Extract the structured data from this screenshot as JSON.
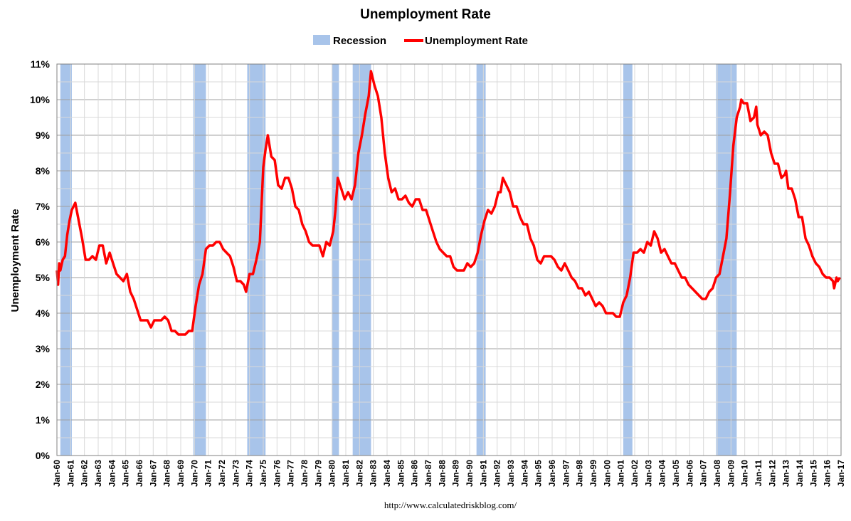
{
  "chart_data": {
    "type": "line",
    "title": "Unemployment Rate",
    "ylabel": "Unemployment Rate",
    "xlabel": "",
    "source": "http://www.calculatedriskblog.com/",
    "legend": {
      "placement": "top-center",
      "entries": [
        "Recession",
        "Unemployment Rate"
      ]
    },
    "colors": {
      "line": "#ff0000",
      "recession": "#a8c4ea",
      "grid_major": "#a0a0a0",
      "grid_minor": "#d9d9d9"
    },
    "grid": true,
    "ylim": [
      0,
      11
    ],
    "xlim": [
      "1960-01",
      "2017-01"
    ],
    "y_ticks": [
      "0%",
      "1%",
      "2%",
      "3%",
      "4%",
      "5%",
      "6%",
      "7%",
      "8%",
      "9%",
      "10%",
      "11%"
    ],
    "x_ticks": [
      "Jan-60",
      "Jan-61",
      "Jan-62",
      "Jan-63",
      "Jan-64",
      "Jan-65",
      "Jan-66",
      "Jan-67",
      "Jan-68",
      "Jan-69",
      "Jan-70",
      "Jan-71",
      "Jan-72",
      "Jan-73",
      "Jan-74",
      "Jan-75",
      "Jan-76",
      "Jan-77",
      "Jan-78",
      "Jan-79",
      "Jan-80",
      "Jan-81",
      "Jan-82",
      "Jan-83",
      "Jan-84",
      "Jan-85",
      "Jan-86",
      "Jan-87",
      "Jan-88",
      "Jan-89",
      "Jan-90",
      "Jan-91",
      "Jan-92",
      "Jan-93",
      "Jan-94",
      "Jan-95",
      "Jan-96",
      "Jan-97",
      "Jan-98",
      "Jan-99",
      "Jan-00",
      "Jan-01",
      "Jan-02",
      "Jan-03",
      "Jan-04",
      "Jan-05",
      "Jan-06",
      "Jan-07",
      "Jan-08",
      "Jan-09",
      "Jan-10",
      "Jan-11",
      "Jan-12",
      "Jan-13",
      "Jan-14",
      "Jan-15",
      "Jan-16",
      "Jan-17"
    ],
    "recessions": [
      {
        "start": "1960-04",
        "end": "1961-02"
      },
      {
        "start": "1969-12",
        "end": "1970-11"
      },
      {
        "start": "1973-11",
        "end": "1975-03"
      },
      {
        "start": "1980-01",
        "end": "1980-07"
      },
      {
        "start": "1981-07",
        "end": "1982-11"
      },
      {
        "start": "1990-07",
        "end": "1991-03"
      },
      {
        "start": "2001-03",
        "end": "2001-11"
      },
      {
        "start": "2007-12",
        "end": "2009-06"
      }
    ],
    "series": [
      {
        "name": "Unemployment Rate",
        "points": [
          [
            "1960-01",
            5.2
          ],
          [
            "1960-02",
            4.8
          ],
          [
            "1960-03",
            5.4
          ],
          [
            "1960-04",
            5.2
          ],
          [
            "1960-06",
            5.5
          ],
          [
            "1960-08",
            5.6
          ],
          [
            "1960-10",
            6.2
          ],
          [
            "1960-12",
            6.6
          ],
          [
            "1961-02",
            6.9
          ],
          [
            "1961-05",
            7.1
          ],
          [
            "1961-08",
            6.6
          ],
          [
            "1961-11",
            6.1
          ],
          [
            "1962-02",
            5.5
          ],
          [
            "1962-05",
            5.5
          ],
          [
            "1962-08",
            5.6
          ],
          [
            "1962-11",
            5.5
          ],
          [
            "1963-02",
            5.9
          ],
          [
            "1963-05",
            5.9
          ],
          [
            "1963-08",
            5.4
          ],
          [
            "1963-11",
            5.7
          ],
          [
            "1964-02",
            5.4
          ],
          [
            "1964-05",
            5.1
          ],
          [
            "1964-08",
            5.0
          ],
          [
            "1964-11",
            4.9
          ],
          [
            "1965-02",
            5.1
          ],
          [
            "1965-05",
            4.6
          ],
          [
            "1965-08",
            4.4
          ],
          [
            "1965-11",
            4.1
          ],
          [
            "1966-02",
            3.8
          ],
          [
            "1966-05",
            3.8
          ],
          [
            "1966-08",
            3.8
          ],
          [
            "1966-11",
            3.6
          ],
          [
            "1967-02",
            3.8
          ],
          [
            "1967-05",
            3.8
          ],
          [
            "1967-08",
            3.8
          ],
          [
            "1967-11",
            3.9
          ],
          [
            "1968-02",
            3.8
          ],
          [
            "1968-05",
            3.5
          ],
          [
            "1968-08",
            3.5
          ],
          [
            "1968-11",
            3.4
          ],
          [
            "1969-02",
            3.4
          ],
          [
            "1969-05",
            3.4
          ],
          [
            "1969-08",
            3.5
          ],
          [
            "1969-11",
            3.5
          ],
          [
            "1970-02",
            4.2
          ],
          [
            "1970-05",
            4.8
          ],
          [
            "1970-08",
            5.1
          ],
          [
            "1970-11",
            5.8
          ],
          [
            "1971-02",
            5.9
          ],
          [
            "1971-05",
            5.9
          ],
          [
            "1971-08",
            6.0
          ],
          [
            "1971-11",
            6.0
          ],
          [
            "1972-02",
            5.8
          ],
          [
            "1972-05",
            5.7
          ],
          [
            "1972-08",
            5.6
          ],
          [
            "1972-11",
            5.3
          ],
          [
            "1973-02",
            4.9
          ],
          [
            "1973-05",
            4.9
          ],
          [
            "1973-08",
            4.8
          ],
          [
            "1973-10",
            4.6
          ],
          [
            "1974-01",
            5.1
          ],
          [
            "1974-04",
            5.1
          ],
          [
            "1974-07",
            5.5
          ],
          [
            "1974-10",
            6.0
          ],
          [
            "1975-01",
            8.1
          ],
          [
            "1975-03",
            8.6
          ],
          [
            "1975-05",
            9.0
          ],
          [
            "1975-08",
            8.4
          ],
          [
            "1975-11",
            8.3
          ],
          [
            "1976-02",
            7.6
          ],
          [
            "1976-05",
            7.5
          ],
          [
            "1976-08",
            7.8
          ],
          [
            "1976-11",
            7.8
          ],
          [
            "1977-02",
            7.5
          ],
          [
            "1977-05",
            7.0
          ],
          [
            "1977-08",
            6.9
          ],
          [
            "1977-11",
            6.5
          ],
          [
            "1978-02",
            6.3
          ],
          [
            "1978-05",
            6.0
          ],
          [
            "1978-08",
            5.9
          ],
          [
            "1978-11",
            5.9
          ],
          [
            "1979-02",
            5.9
          ],
          [
            "1979-05",
            5.6
          ],
          [
            "1979-08",
            6.0
          ],
          [
            "1979-11",
            5.9
          ],
          [
            "1980-02",
            6.3
          ],
          [
            "1980-04",
            6.9
          ],
          [
            "1980-06",
            7.8
          ],
          [
            "1980-09",
            7.5
          ],
          [
            "1980-12",
            7.2
          ],
          [
            "1981-03",
            7.4
          ],
          [
            "1981-06",
            7.2
          ],
          [
            "1981-09",
            7.6
          ],
          [
            "1981-12",
            8.5
          ],
          [
            "1982-03",
            9.0
          ],
          [
            "1982-06",
            9.6
          ],
          [
            "1982-09",
            10.1
          ],
          [
            "1982-11",
            10.8
          ],
          [
            "1983-02",
            10.4
          ],
          [
            "1983-05",
            10.1
          ],
          [
            "1983-08",
            9.5
          ],
          [
            "1983-11",
            8.5
          ],
          [
            "1984-02",
            7.8
          ],
          [
            "1984-05",
            7.4
          ],
          [
            "1984-08",
            7.5
          ],
          [
            "1984-11",
            7.2
          ],
          [
            "1985-02",
            7.2
          ],
          [
            "1985-05",
            7.3
          ],
          [
            "1985-08",
            7.1
          ],
          [
            "1985-11",
            7.0
          ],
          [
            "1986-02",
            7.2
          ],
          [
            "1986-05",
            7.2
          ],
          [
            "1986-08",
            6.9
          ],
          [
            "1986-11",
            6.9
          ],
          [
            "1987-02",
            6.6
          ],
          [
            "1987-05",
            6.3
          ],
          [
            "1987-08",
            6.0
          ],
          [
            "1987-11",
            5.8
          ],
          [
            "1988-02",
            5.7
          ],
          [
            "1988-05",
            5.6
          ],
          [
            "1988-08",
            5.6
          ],
          [
            "1988-11",
            5.3
          ],
          [
            "1989-02",
            5.2
          ],
          [
            "1989-05",
            5.2
          ],
          [
            "1989-08",
            5.2
          ],
          [
            "1989-11",
            5.4
          ],
          [
            "1990-02",
            5.3
          ],
          [
            "1990-05",
            5.4
          ],
          [
            "1990-08",
            5.7
          ],
          [
            "1990-11",
            6.2
          ],
          [
            "1991-02",
            6.6
          ],
          [
            "1991-05",
            6.9
          ],
          [
            "1991-08",
            6.8
          ],
          [
            "1991-11",
            7.0
          ],
          [
            "1992-02",
            7.4
          ],
          [
            "1992-04",
            7.4
          ],
          [
            "1992-06",
            7.8
          ],
          [
            "1992-09",
            7.6
          ],
          [
            "1992-12",
            7.4
          ],
          [
            "1993-03",
            7.0
          ],
          [
            "1993-06",
            7.0
          ],
          [
            "1993-09",
            6.7
          ],
          [
            "1993-12",
            6.5
          ],
          [
            "1994-03",
            6.5
          ],
          [
            "1994-06",
            6.1
          ],
          [
            "1994-09",
            5.9
          ],
          [
            "1994-12",
            5.5
          ],
          [
            "1995-03",
            5.4
          ],
          [
            "1995-06",
            5.6
          ],
          [
            "1995-09",
            5.6
          ],
          [
            "1995-12",
            5.6
          ],
          [
            "1996-03",
            5.5
          ],
          [
            "1996-06",
            5.3
          ],
          [
            "1996-09",
            5.2
          ],
          [
            "1996-12",
            5.4
          ],
          [
            "1997-03",
            5.2
          ],
          [
            "1997-06",
            5.0
          ],
          [
            "1997-09",
            4.9
          ],
          [
            "1997-12",
            4.7
          ],
          [
            "1998-03",
            4.7
          ],
          [
            "1998-06",
            4.5
          ],
          [
            "1998-09",
            4.6
          ],
          [
            "1998-12",
            4.4
          ],
          [
            "1999-03",
            4.2
          ],
          [
            "1999-06",
            4.3
          ],
          [
            "1999-09",
            4.2
          ],
          [
            "1999-12",
            4.0
          ],
          [
            "2000-03",
            4.0
          ],
          [
            "2000-06",
            4.0
          ],
          [
            "2000-09",
            3.9
          ],
          [
            "2000-12",
            3.9
          ],
          [
            "2001-03",
            4.3
          ],
          [
            "2001-06",
            4.5
          ],
          [
            "2001-09",
            5.0
          ],
          [
            "2001-12",
            5.7
          ],
          [
            "2002-03",
            5.7
          ],
          [
            "2002-06",
            5.8
          ],
          [
            "2002-09",
            5.7
          ],
          [
            "2002-12",
            6.0
          ],
          [
            "2003-03",
            5.9
          ],
          [
            "2003-06",
            6.3
          ],
          [
            "2003-09",
            6.1
          ],
          [
            "2003-12",
            5.7
          ],
          [
            "2004-03",
            5.8
          ],
          [
            "2004-06",
            5.6
          ],
          [
            "2004-09",
            5.4
          ],
          [
            "2004-12",
            5.4
          ],
          [
            "2005-03",
            5.2
          ],
          [
            "2005-06",
            5.0
          ],
          [
            "2005-09",
            5.0
          ],
          [
            "2005-12",
            4.8
          ],
          [
            "2006-03",
            4.7
          ],
          [
            "2006-06",
            4.6
          ],
          [
            "2006-09",
            4.5
          ],
          [
            "2006-12",
            4.4
          ],
          [
            "2007-03",
            4.4
          ],
          [
            "2007-06",
            4.6
          ],
          [
            "2007-09",
            4.7
          ],
          [
            "2007-12",
            5.0
          ],
          [
            "2008-03",
            5.1
          ],
          [
            "2008-06",
            5.6
          ],
          [
            "2008-09",
            6.1
          ],
          [
            "2008-12",
            7.3
          ],
          [
            "2009-03",
            8.7
          ],
          [
            "2009-06",
            9.5
          ],
          [
            "2009-09",
            9.8
          ],
          [
            "2009-10",
            10.0
          ],
          [
            "2009-12",
            9.9
          ],
          [
            "2010-03",
            9.9
          ],
          [
            "2010-06",
            9.4
          ],
          [
            "2010-09",
            9.5
          ],
          [
            "2010-11",
            9.8
          ],
          [
            "2010-12",
            9.3
          ],
          [
            "2011-03",
            9.0
          ],
          [
            "2011-06",
            9.1
          ],
          [
            "2011-09",
            9.0
          ],
          [
            "2011-12",
            8.5
          ],
          [
            "2012-03",
            8.2
          ],
          [
            "2012-06",
            8.2
          ],
          [
            "2012-09",
            7.8
          ],
          [
            "2012-12",
            7.9
          ],
          [
            "2013-01",
            8.0
          ],
          [
            "2013-03",
            7.5
          ],
          [
            "2013-06",
            7.5
          ],
          [
            "2013-09",
            7.2
          ],
          [
            "2013-12",
            6.7
          ],
          [
            "2014-03",
            6.7
          ],
          [
            "2014-06",
            6.1
          ],
          [
            "2014-09",
            5.9
          ],
          [
            "2014-12",
            5.6
          ],
          [
            "2015-03",
            5.4
          ],
          [
            "2015-06",
            5.3
          ],
          [
            "2015-09",
            5.1
          ],
          [
            "2015-12",
            5.0
          ],
          [
            "2016-03",
            5.0
          ],
          [
            "2016-06",
            4.9
          ],
          [
            "2016-07",
            4.7
          ],
          [
            "2016-09",
            5.0
          ],
          [
            "2016-10",
            4.9
          ],
          [
            "2016-12",
            5.0
          ]
        ]
      }
    ]
  }
}
